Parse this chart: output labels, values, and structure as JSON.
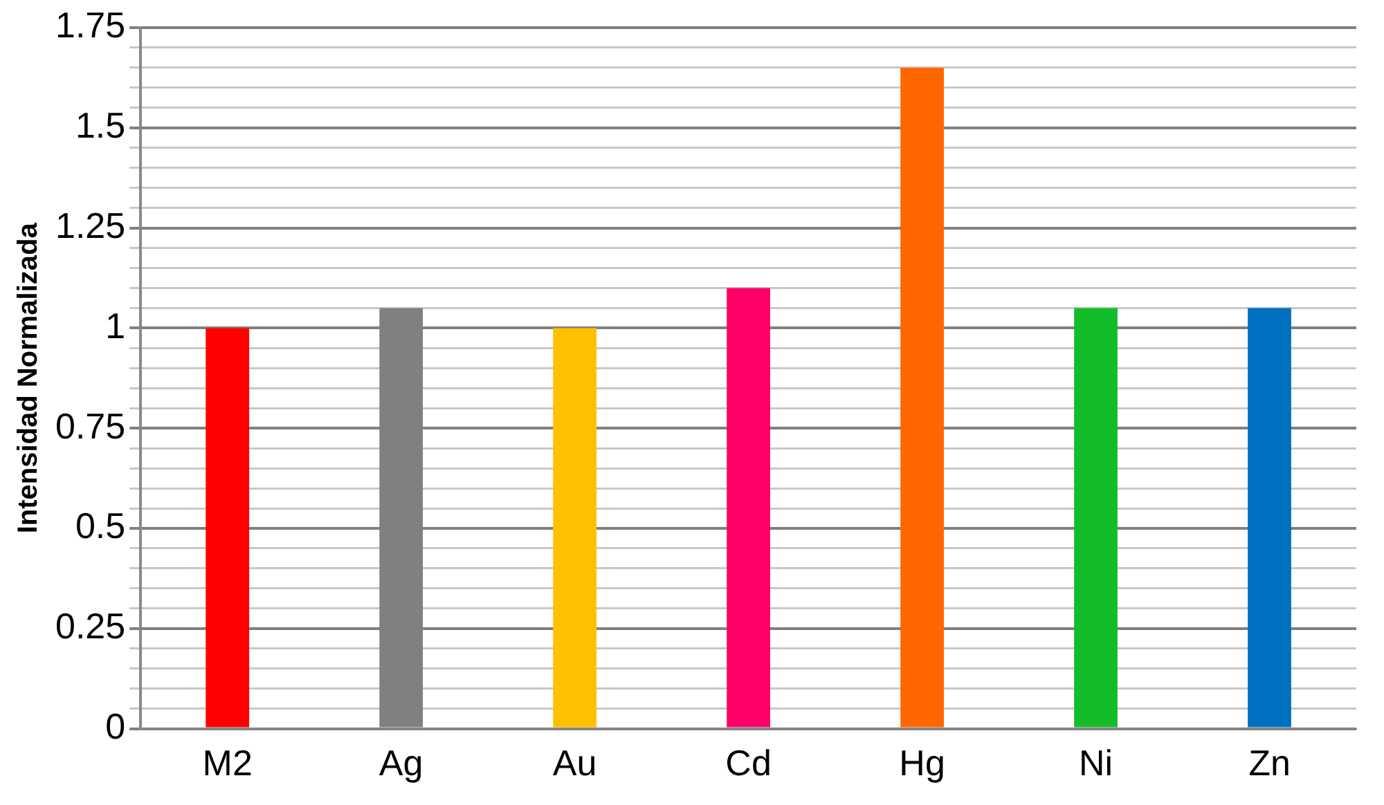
{
  "chart_data": {
    "type": "bar",
    "ylabel": "Intensidad Normalizada",
    "categories": [
      "M2",
      "Ag",
      "Au",
      "Cd",
      "Hg",
      "Ni",
      "Zn"
    ],
    "values": [
      1.0,
      1.05,
      1.0,
      1.1,
      1.65,
      1.05,
      1.05
    ],
    "colors": [
      "#ff0000",
      "#808080",
      "#ffc000",
      "#ff0066",
      "#ff6600",
      "#13bd2a",
      "#0070c0"
    ],
    "ylim": [
      0,
      1.75
    ],
    "yticks": [
      0,
      {
        "value": 0.05,
        "label": null
      },
      {
        "value": 0.1,
        "label": null
      },
      {
        "value": 0.15,
        "label": null
      },
      {
        "value": 0.2,
        "label": null
      },
      0.25,
      {
        "value": 0.3,
        "label": null
      },
      {
        "value": 0.35,
        "label": null
      },
      {
        "value": 0.4,
        "label": null
      },
      {
        "value": 0.45,
        "label": null
      },
      0.5,
      {
        "value": 0.55,
        "label": null
      },
      {
        "value": 0.6,
        "label": null
      },
      {
        "value": 0.65,
        "label": null
      },
      {
        "value": 0.7,
        "label": null
      },
      0.75,
      {
        "value": 0.8,
        "label": null
      },
      {
        "value": 0.85,
        "label": null
      },
      {
        "value": 0.9,
        "label": null
      },
      {
        "value": 0.95,
        "label": null
      },
      1,
      {
        "value": 1.05,
        "label": null
      },
      {
        "value": 1.1,
        "label": null
      },
      {
        "value": 1.15,
        "label": null
      },
      {
        "value": 1.2,
        "label": null
      },
      1.25,
      {
        "value": 1.3,
        "label": null
      },
      {
        "value": 1.35,
        "label": null
      },
      {
        "value": 1.4,
        "label": null
      },
      {
        "value": 1.45,
        "label": null
      },
      1.5,
      {
        "value": 1.55,
        "label": null
      },
      {
        "value": 1.6,
        "label": null
      },
      {
        "value": 1.65,
        "label": null
      },
      {
        "value": 1.7,
        "label": null
      },
      1.75
    ],
    "grid": "y",
    "legend": false
  }
}
